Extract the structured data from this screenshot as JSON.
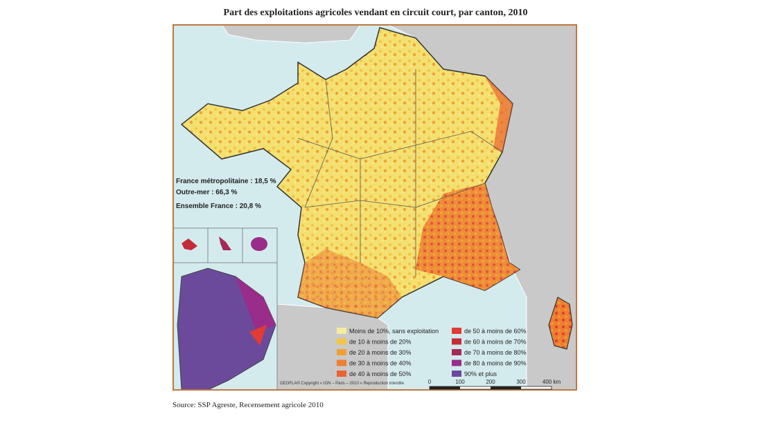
{
  "title": "Part des exploitations agricoles vendant en circuit court, par canton, 2010",
  "stats": [
    "France métropolitaine : 18,5 %",
    "Outre-mer : 66,3 %",
    "Ensemble France : 20,8 %"
  ],
  "legend": {
    "items": [
      {
        "label": "Moins de 10%, sans exploitation",
        "color": "#f6ec9c"
      },
      {
        "label": "de 10 à moins de 20%",
        "color": "#f2c545"
      },
      {
        "label": "de 20 à moins de 30%",
        "color": "#f0a032"
      },
      {
        "label": "de 30 à moins de 40%",
        "color": "#ed7f2f"
      },
      {
        "label": "de 40 à moins de 50%",
        "color": "#ea6330"
      },
      {
        "label": "de 50 à moins de 60%",
        "color": "#e23a35"
      },
      {
        "label": "de 60 à moins de 70%",
        "color": "#c42c38"
      },
      {
        "label": "de 70 à moins de 80%",
        "color": "#a52a57"
      },
      {
        "label": "de 80 à moins de 90%",
        "color": "#9a2c8a"
      },
      {
        "label": "90% et plus",
        "color": "#6b4a9c"
      }
    ]
  },
  "credits": "GEOFLA® Copyright « IGN – Paris – 2010 » Reproduction interdite",
  "scale": [
    "0",
    "100",
    "200",
    "300",
    "400 km"
  ],
  "source": "Source: SSP Agreste, Recensement agricole 2010"
}
